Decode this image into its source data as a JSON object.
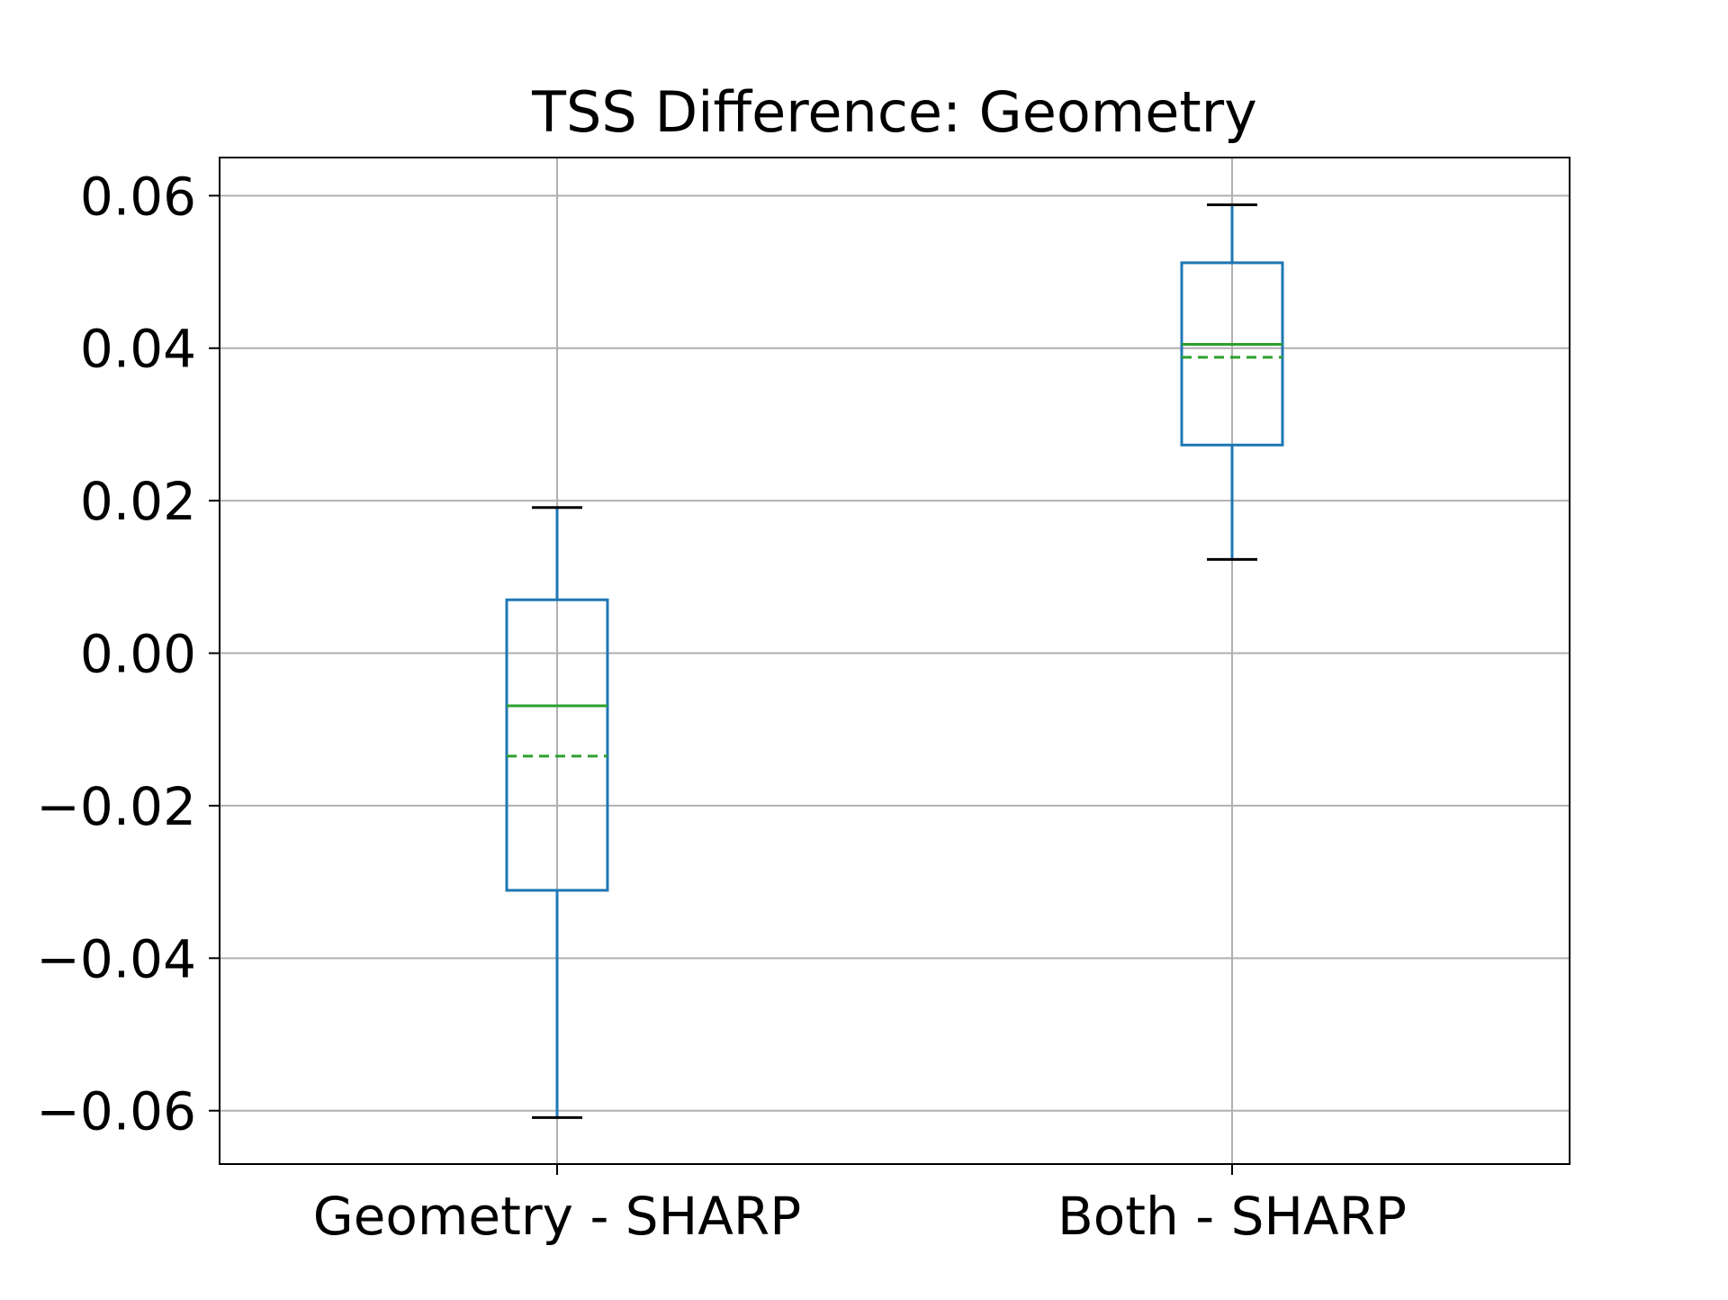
{
  "chart_data": {
    "type": "box",
    "title": "TSS Difference: Geometry",
    "xlabel": "",
    "ylabel": "",
    "ylim": [
      -0.067,
      0.065
    ],
    "yticks": [
      {
        "value": -0.06,
        "label": "−0.06"
      },
      {
        "value": -0.04,
        "label": "−0.04"
      },
      {
        "value": -0.02,
        "label": "−0.02"
      },
      {
        "value": 0.0,
        "label": "0.00"
      },
      {
        "value": 0.02,
        "label": "0.02"
      },
      {
        "value": 0.04,
        "label": "0.04"
      },
      {
        "value": 0.06,
        "label": "0.06"
      }
    ],
    "grid": true,
    "categories": [
      "Geometry - SHARP",
      "Both - SHARP"
    ],
    "boxes": [
      {
        "category": "Geometry - SHARP",
        "whisker_low": -0.0609,
        "q1": -0.0311,
        "median": -0.0069,
        "mean": -0.0135,
        "q3": 0.007,
        "whisker_high": 0.0191
      },
      {
        "category": "Both - SHARP",
        "whisker_low": 0.0123,
        "q1": 0.0273,
        "median": 0.0405,
        "mean": 0.0388,
        "q3": 0.0512,
        "whisker_high": 0.0588
      }
    ],
    "colors": {
      "box": "#1f77b4",
      "median": "#2ca02c",
      "mean": "#2ca02c",
      "caps": "#000000",
      "grid": "#b0b0b0",
      "frame": "#000000"
    }
  }
}
